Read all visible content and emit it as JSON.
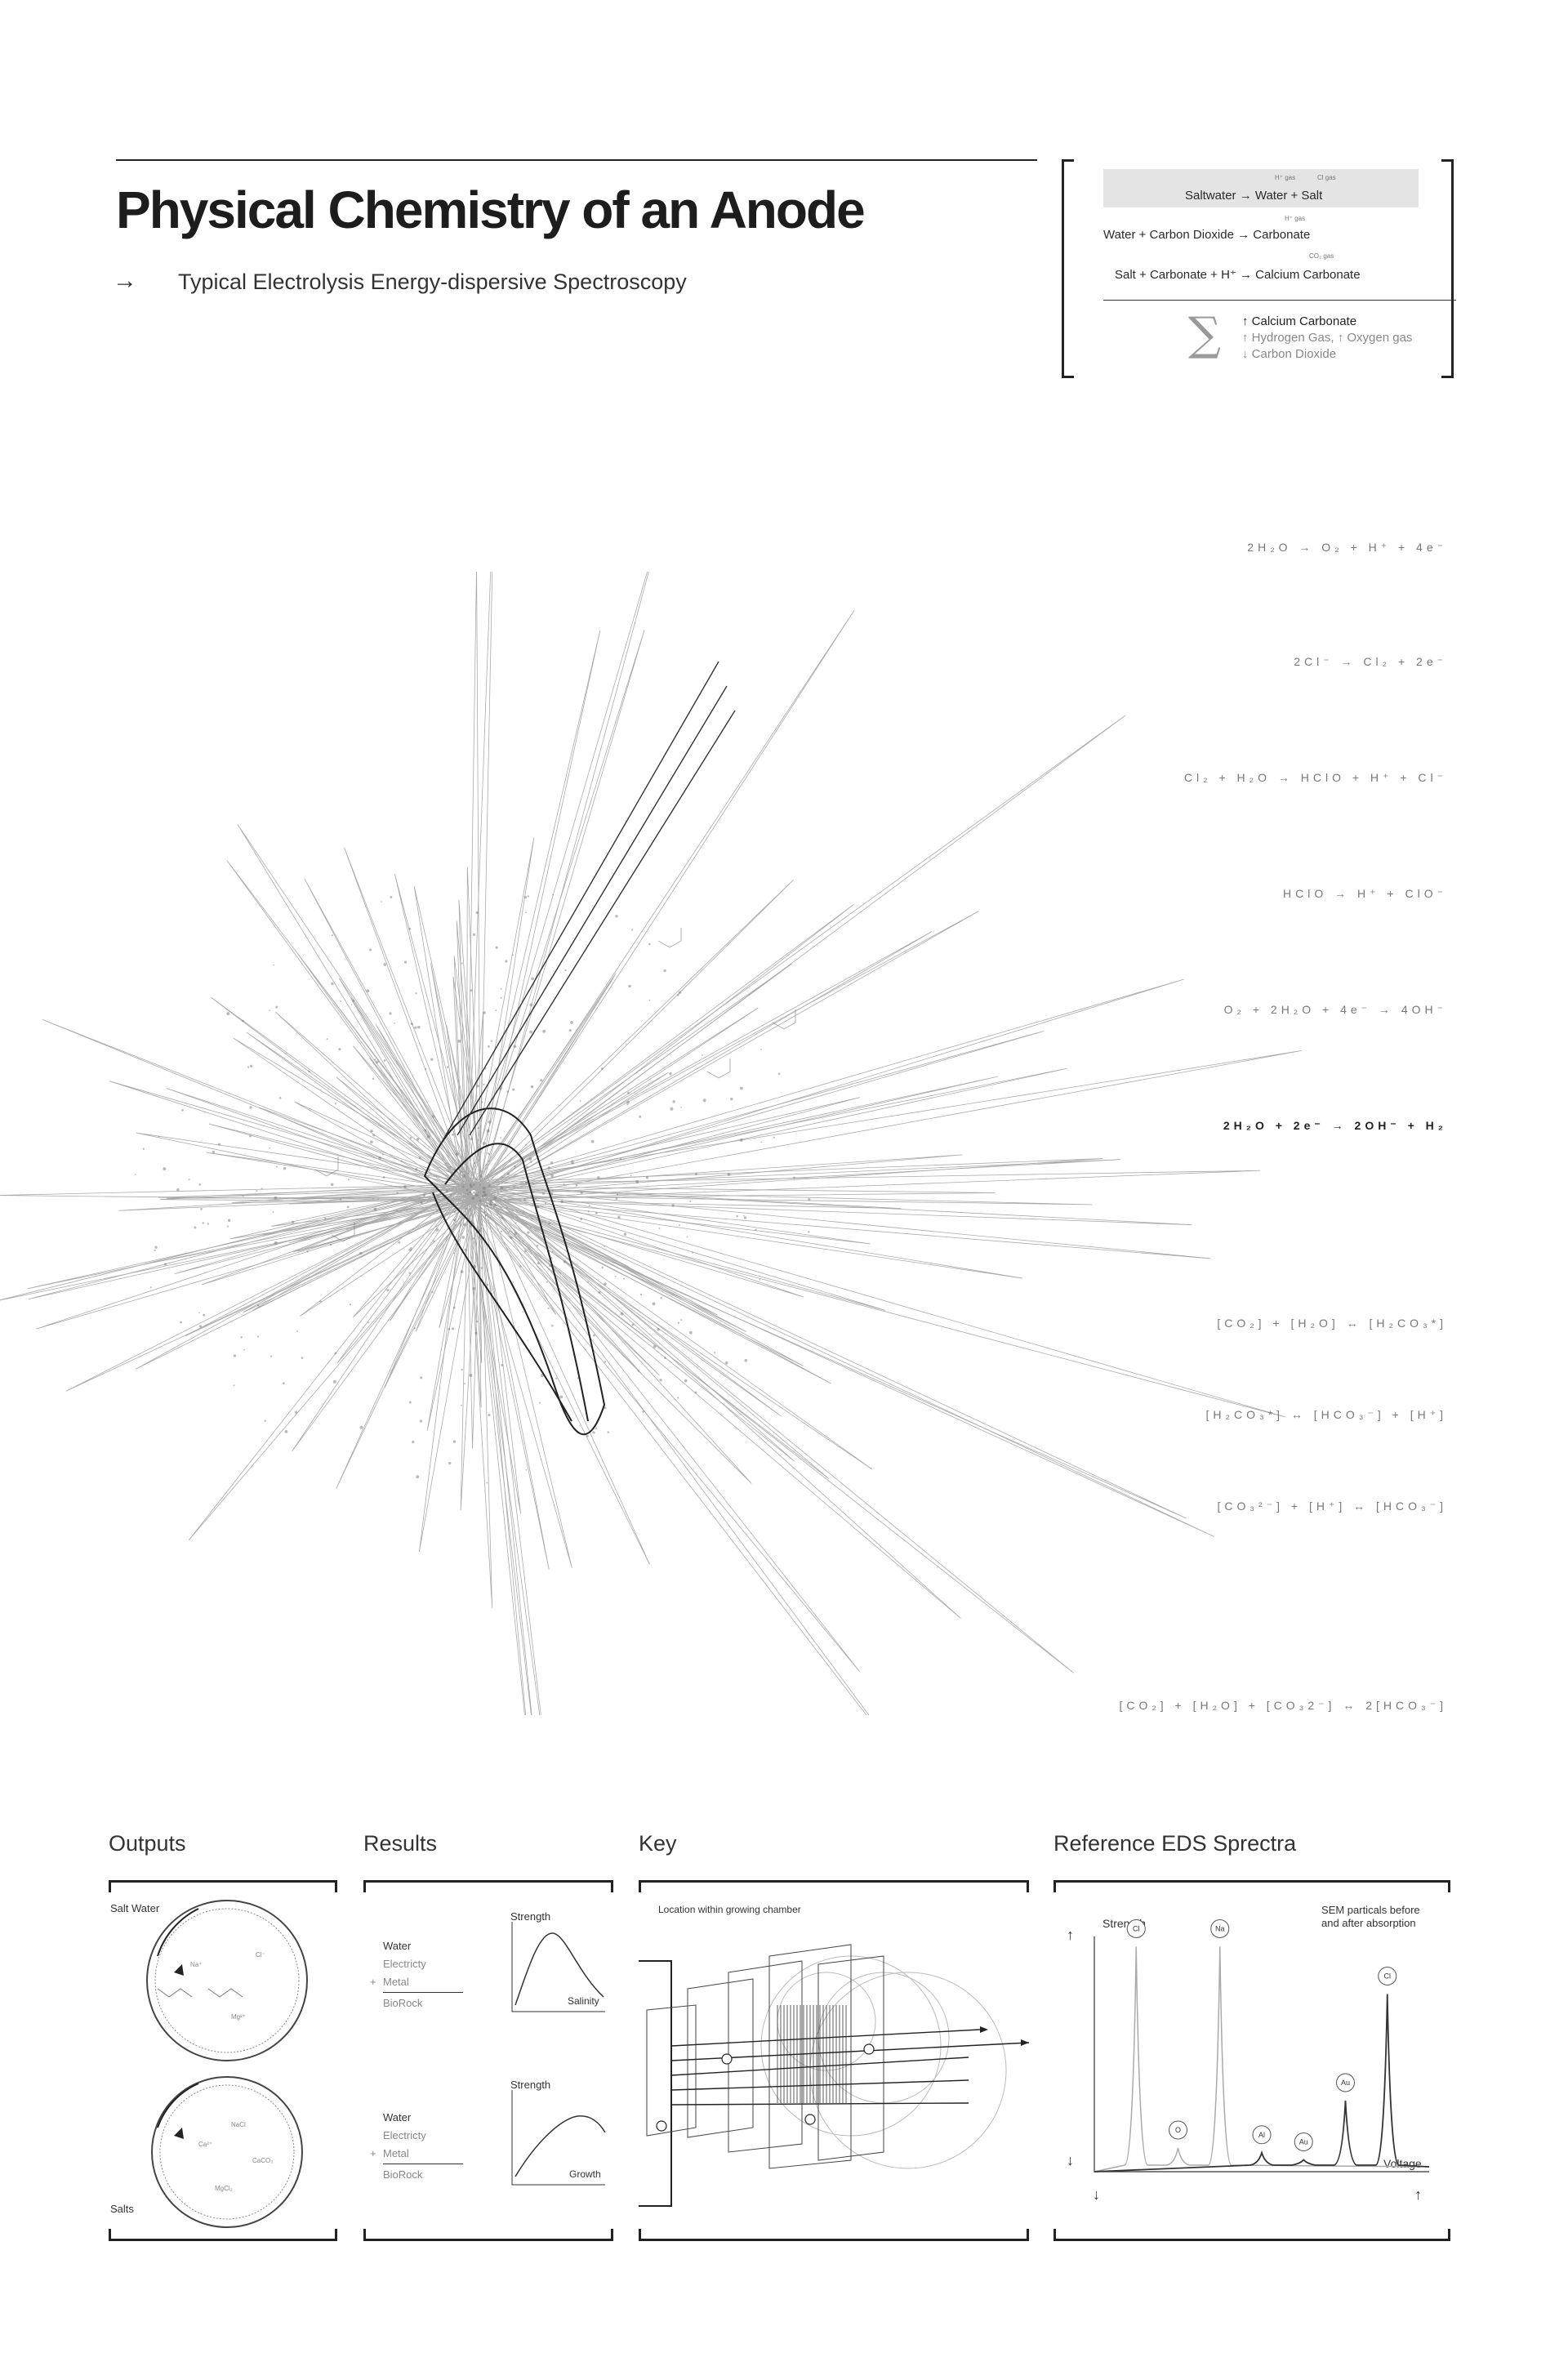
{
  "header": {
    "title": "Physical Chemistry of an Anode",
    "subtitle_arrow": "→",
    "subtitle": "Typical Electrolysis Energy-dispersive Spectroscopy"
  },
  "summary": {
    "line1": "Saltwater → Water + Salt",
    "line1_notes": [
      "H⁺ gas",
      "Cl gas"
    ],
    "line2": "Water + Carbon Dioxide → Carbonate",
    "line2_note": "H⁺ gas",
    "line3": "Salt + Carbonate + H⁺ → Calcium Carbonate",
    "line3_note": "CO₂ gas",
    "sigma": "∑",
    "outputs": [
      {
        "text": "↑ Calcium Carbonate",
        "tone": "dark"
      },
      {
        "text": "↑ Hydrogen Gas, ↑ Oxygen gas",
        "tone": "grey"
      },
      {
        "text": "↓ Carbon Dioxide",
        "tone": "grey"
      }
    ]
  },
  "equations": [
    "2H₂O → O₂ + H⁺ + 4e⁻",
    "2Cl⁻ → Cl₂ + 2e⁻",
    "Cl₂ + H₂O → HClO + H⁺ + Cl⁻",
    "HClO → H⁺ + ClO⁻",
    "O₂ + 2H₂O + 4e⁻ → 4OH⁻",
    "2H₂O + 2e⁻ → 2OH⁻ + H₂",
    "[CO₂] + [H₂O] ↔ [H₂CO₃*]",
    "[H₂CO₃*] ↔ [HCO₃⁻] + [H⁺]",
    "[CO₃²⁻] + [H⁺] ↔ [HCO₃⁻]",
    "[CO₂] + [H₂O] + [CO₃2⁻] ↔ 2[HCO₃⁻]"
  ],
  "panels": {
    "outputs": {
      "title": "Outputs",
      "top_label": "Salt Water",
      "bottom_label": "Salts",
      "dish_labels": [
        "Na⁺",
        "Cl⁻",
        "Mg²⁺",
        "Ca²⁺",
        "NaCl",
        "CaCO₃",
        "MgCl₂"
      ]
    },
    "results": {
      "title": "Results",
      "list1": [
        "Water",
        "Electricty",
        "Metal",
        "BioRock"
      ],
      "list2": [
        "Water",
        "Electricty",
        "Metal",
        "BioRock"
      ],
      "plus": "+",
      "graph1": {
        "ylabel": "Strength",
        "xlabel": "Salinity"
      },
      "graph2": {
        "ylabel": "Strength",
        "xlabel": "Growth"
      }
    },
    "key": {
      "title": "Key",
      "caption": "Location within growing chamber"
    },
    "eds": {
      "title": "Reference EDS Sprectra",
      "ylabel": "Strength",
      "xlabel": "Voltage",
      "note_line1": "SEM particals before",
      "note_line2": "and after absorption",
      "arrow_up": "↑",
      "arrow_down": "↓",
      "peaks": [
        "Cl",
        "O",
        "Na",
        "Al",
        "Au",
        "Au",
        "Cl"
      ]
    }
  },
  "chart_data": {
    "type": "line",
    "title": "Reference EDS Sprectra",
    "xlabel": "Voltage",
    "ylabel": "Strength",
    "series": [
      {
        "name": "SEM particals before",
        "peaks": [
          {
            "label": "Cl",
            "x": 1,
            "y": 0.95
          },
          {
            "label": "O",
            "x": 2,
            "y": 0.1
          },
          {
            "label": "Na",
            "x": 3,
            "y": 0.95
          }
        ]
      },
      {
        "name": "and after absorption",
        "peaks": [
          {
            "label": "Al",
            "x": 4,
            "y": 0.08
          },
          {
            "label": "Au",
            "x": 5,
            "y": 0.05
          },
          {
            "label": "Au",
            "x": 6,
            "y": 0.3
          },
          {
            "label": "Cl",
            "x": 7,
            "y": 0.75
          }
        ]
      }
    ]
  }
}
